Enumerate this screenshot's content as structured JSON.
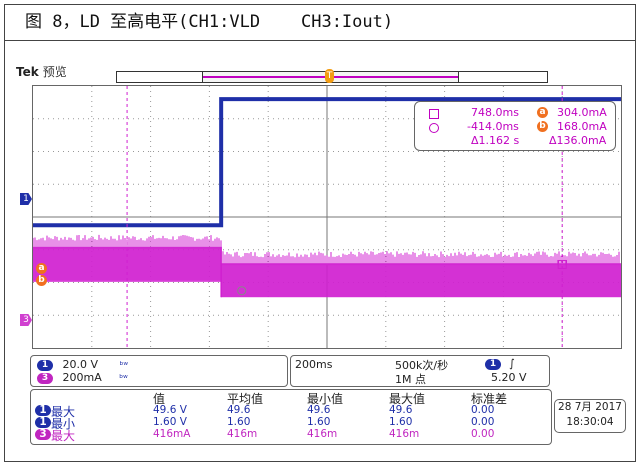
{
  "caption": "图 8，LD 至高电平(CH1:VLD    CH3:Iout)",
  "scope": {
    "brand": "Tek",
    "mode": "预览",
    "trigger_marker": "T",
    "ch1_marker": "1",
    "ch3_marker": "3",
    "cursor_a": "a",
    "cursor_b": "b"
  },
  "readout": {
    "row1_time": "748.0ms",
    "row1_value": "304.0mA",
    "row2_time": "-414.0ms",
    "row2_value": "168.0mA",
    "delta_time": "Δ1.162 s",
    "delta_value": "Δ136.0mA",
    "badge_a": "a",
    "badge_b": "b"
  },
  "channels": [
    {
      "num": "1",
      "scale": "20.0 V",
      "bw": "ᵇʷ"
    },
    {
      "num": "3",
      "scale": "200mA",
      "bw": "ᵇʷ"
    }
  ],
  "timebase": {
    "scale": "200ms",
    "rate": "500k次/秒",
    "points": "1M 点",
    "trig_channel": "1",
    "trig_slope": "∫",
    "trig_level": "5.20 V"
  },
  "measurements": {
    "headers": [
      "值",
      "平均值",
      "最小值",
      "最大值",
      "标准差"
    ],
    "rows": [
      {
        "ch": "1",
        "label": "最大",
        "cells": [
          "49.6 V",
          "49.6",
          "49.6",
          "49.6",
          "0.00"
        ]
      },
      {
        "ch": "1",
        "label": "最小",
        "cells": [
          "1.60 V",
          "1.60",
          "1.60",
          "1.60",
          "0.00"
        ]
      },
      {
        "ch": "3",
        "label": "最大",
        "cells": [
          "416mA",
          "416m",
          "416m",
          "416m",
          "0.00"
        ]
      }
    ]
  },
  "datetime": {
    "date": "28 7月 2017",
    "time": "18:30:04"
  },
  "colors": {
    "ch1": "#1f2fa8",
    "ch3": "#d020d0",
    "cursor": "#f07020"
  },
  "waveforms": {
    "ch1_low_level_div": -0.25,
    "ch1_high_level_div": 3.6,
    "ch1_step_time_div": 3.2,
    "ch3_high_level_div": -1.4,
    "ch3_low_level_div": -1.9,
    "ch3_step_time_div": 3.2
  }
}
